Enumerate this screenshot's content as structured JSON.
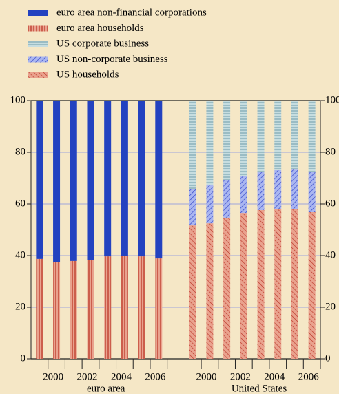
{
  "chart_data": {
    "type": "bar",
    "stacked": true,
    "categories": [
      "2000",
      null,
      "2002",
      null,
      "2004",
      null,
      "2006",
      null,
      "2000",
      null,
      "2002",
      null,
      "2004",
      null,
      "2006",
      null
    ],
    "groups": [
      {
        "label": "euro area",
        "count": 8
      },
      {
        "label": "United States",
        "count": 8
      }
    ],
    "series": [
      {
        "name": "euro area non-financial corporations",
        "color": "#2342c0",
        "values": [
          61.3,
          62.4,
          62.1,
          61.6,
          60.3,
          60.0,
          60.3,
          61.1,
          null,
          null,
          null,
          null,
          null,
          null,
          null,
          null
        ]
      },
      {
        "name": "euro area households",
        "color": "#e9a28e",
        "values": [
          38.7,
          37.6,
          37.9,
          38.4,
          39.7,
          40.0,
          39.7,
          38.9,
          null,
          null,
          null,
          null,
          null,
          null,
          null,
          null
        ]
      },
      {
        "name": "US corporate business",
        "color": "#c6dde0",
        "values": [
          null,
          null,
          null,
          null,
          null,
          null,
          null,
          null,
          34.1,
          32.8,
          30.9,
          29.3,
          27.7,
          26.9,
          26.7,
          27.5
        ]
      },
      {
        "name": "US non-corporate business",
        "color": "#aab6f0",
        "values": [
          null,
          null,
          null,
          null,
          null,
          null,
          null,
          null,
          14.2,
          14.7,
          14.4,
          14.2,
          14.7,
          15.0,
          15.2,
          15.7
        ]
      },
      {
        "name": "US households",
        "color": "#e9a28e",
        "values": [
          null,
          null,
          null,
          null,
          null,
          null,
          null,
          null,
          51.7,
          52.5,
          54.7,
          56.5,
          57.6,
          58.1,
          58.1,
          56.8
        ]
      }
    ],
    "ylim": [
      0,
      100
    ],
    "yticks": [
      0,
      20,
      40,
      60,
      80,
      100
    ],
    "grid": true
  }
}
